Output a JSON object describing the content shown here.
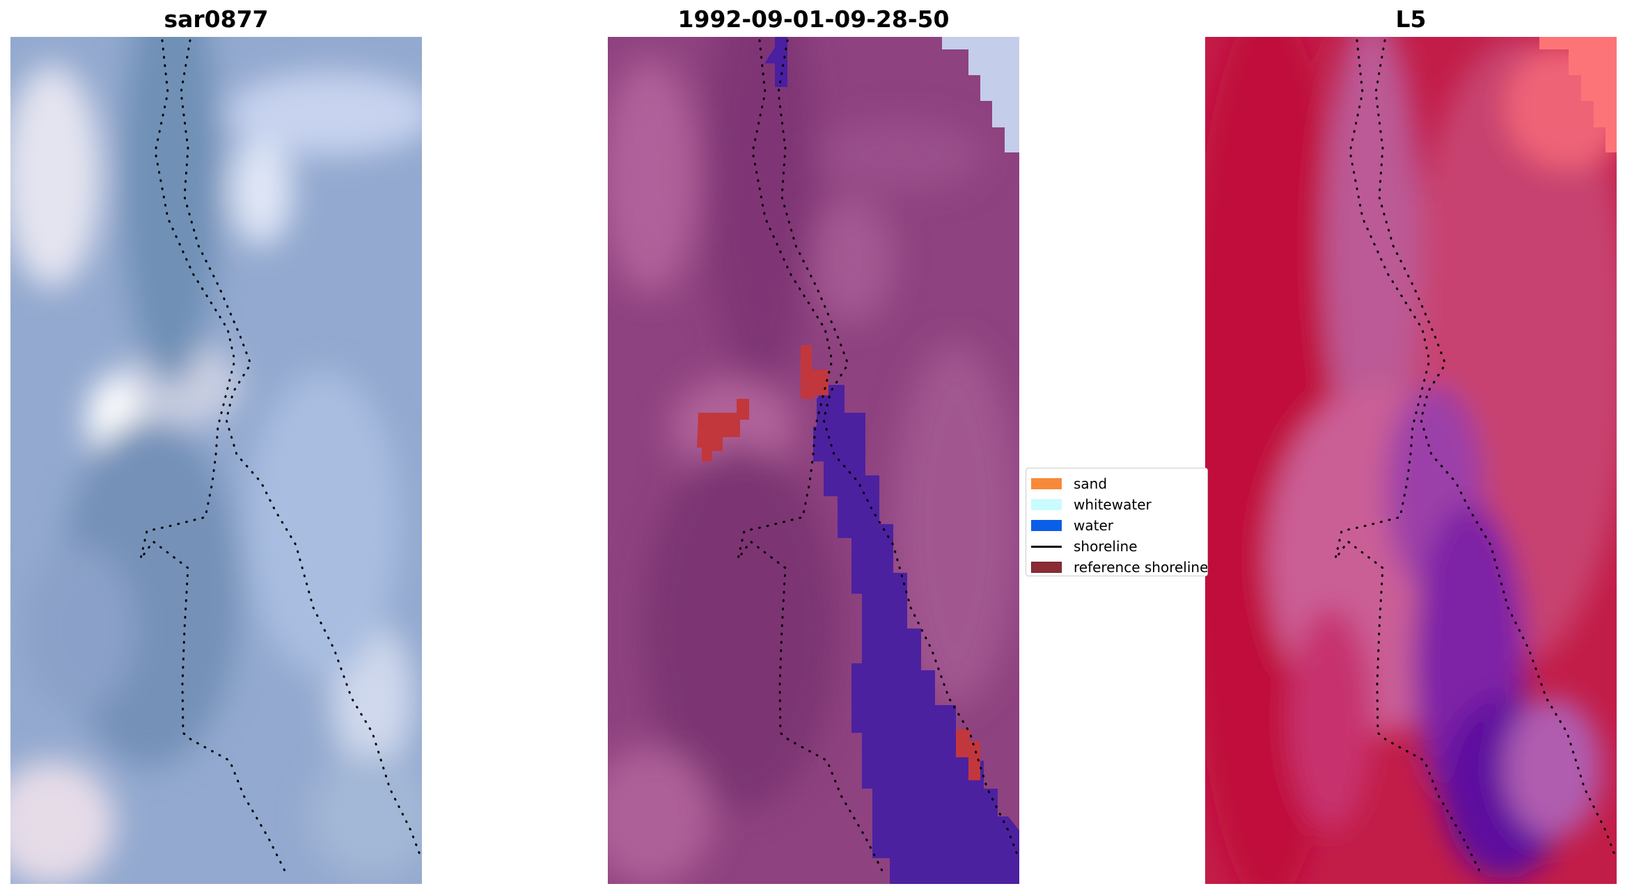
{
  "panels": [
    {
      "id": "rgb",
      "title": "sar0877"
    },
    {
      "id": "classification",
      "title": "1992-09-01-09-28-50"
    },
    {
      "id": "mndwi",
      "title": "L5"
    }
  ],
  "legend": {
    "items": [
      {
        "label": "sand",
        "color": "#f68a3a",
        "kind": "patch"
      },
      {
        "label": "whitewater",
        "color": "#c9fbff",
        "kind": "patch"
      },
      {
        "label": "water",
        "color": "#0a5ee8",
        "kind": "patch"
      },
      {
        "label": "shoreline",
        "color": "#000000",
        "kind": "line"
      },
      {
        "label": "reference shoreline",
        "color": "#8b2c35",
        "kind": "patch"
      }
    ]
  },
  "colors": {
    "rgb_base": "#8fa6cc",
    "rgb_highlight": "#e6e9f4",
    "classification_base": "#8d3f7e",
    "classification_water_overlay": "#4a1fa0",
    "classification_red": "#c2393c",
    "mndwi_base": "#c61b48",
    "mndwi_purple": "#6a0fa0",
    "shoreline_dots": "#000000"
  }
}
